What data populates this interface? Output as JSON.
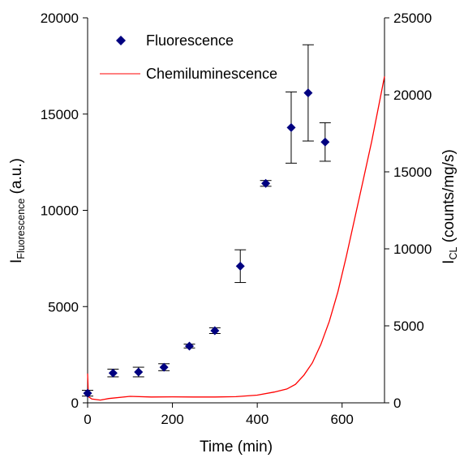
{
  "chart_data": {
    "type": "scatter",
    "title": "",
    "xlabel": "Time (min)",
    "ylabel_left": {
      "main": "I",
      "sub": "Fluorescence",
      "suffix": " (a.u.)"
    },
    "ylabel_right": {
      "main": "I",
      "sub": "CL",
      "suffix": " (counts/mg/s)"
    },
    "xlim": [
      0,
      700
    ],
    "ylim_left": [
      0,
      20000
    ],
    "ylim_right": [
      0,
      25000
    ],
    "x_ticks": [
      "0",
      "200",
      "400",
      "600"
    ],
    "y_left_ticks": [
      "0",
      "5000",
      "10000",
      "15000",
      "20000"
    ],
    "y_right_ticks": [
      "0",
      "5000",
      "10000",
      "15000",
      "20000",
      "25000"
    ],
    "grid": false,
    "legend_position": "top-left",
    "series": [
      {
        "name": "Fluorescence",
        "kind": "scatter-errorbar",
        "axis": "left",
        "color": "#000080",
        "marker": "diamond",
        "points": [
          {
            "x": 0,
            "y": 500,
            "err": 150
          },
          {
            "x": 60,
            "y": 1550,
            "err": 200
          },
          {
            "x": 120,
            "y": 1600,
            "err": 250
          },
          {
            "x": 180,
            "y": 1850,
            "err": 180
          },
          {
            "x": 240,
            "y": 2950,
            "err": 100
          },
          {
            "x": 300,
            "y": 3750,
            "err": 150
          },
          {
            "x": 360,
            "y": 7100,
            "err": 850
          },
          {
            "x": 420,
            "y": 11400,
            "err": 150
          },
          {
            "x": 480,
            "y": 14300,
            "err": 1850
          },
          {
            "x": 520,
            "y": 16100,
            "err": 2500
          },
          {
            "x": 560,
            "y": 13550,
            "err": 1000
          }
        ]
      },
      {
        "name": "Chemiluminescence",
        "kind": "line",
        "axis": "right",
        "color": "#ff0000",
        "points": [
          {
            "x": 0,
            "y": 1900
          },
          {
            "x": 2,
            "y": 400
          },
          {
            "x": 10,
            "y": 250
          },
          {
            "x": 30,
            "y": 180
          },
          {
            "x": 50,
            "y": 280
          },
          {
            "x": 100,
            "y": 420
          },
          {
            "x": 150,
            "y": 380
          },
          {
            "x": 200,
            "y": 390
          },
          {
            "x": 250,
            "y": 380
          },
          {
            "x": 300,
            "y": 380
          },
          {
            "x": 350,
            "y": 400
          },
          {
            "x": 400,
            "y": 500
          },
          {
            "x": 440,
            "y": 700
          },
          {
            "x": 470,
            "y": 900
          },
          {
            "x": 490,
            "y": 1200
          },
          {
            "x": 510,
            "y": 1800
          },
          {
            "x": 530,
            "y": 2600
          },
          {
            "x": 550,
            "y": 3800
          },
          {
            "x": 570,
            "y": 5300
          },
          {
            "x": 590,
            "y": 7200
          },
          {
            "x": 610,
            "y": 9500
          },
          {
            "x": 630,
            "y": 12000
          },
          {
            "x": 650,
            "y": 14500
          },
          {
            "x": 670,
            "y": 17000
          },
          {
            "x": 690,
            "y": 19800
          },
          {
            "x": 700,
            "y": 21200
          }
        ]
      }
    ]
  }
}
